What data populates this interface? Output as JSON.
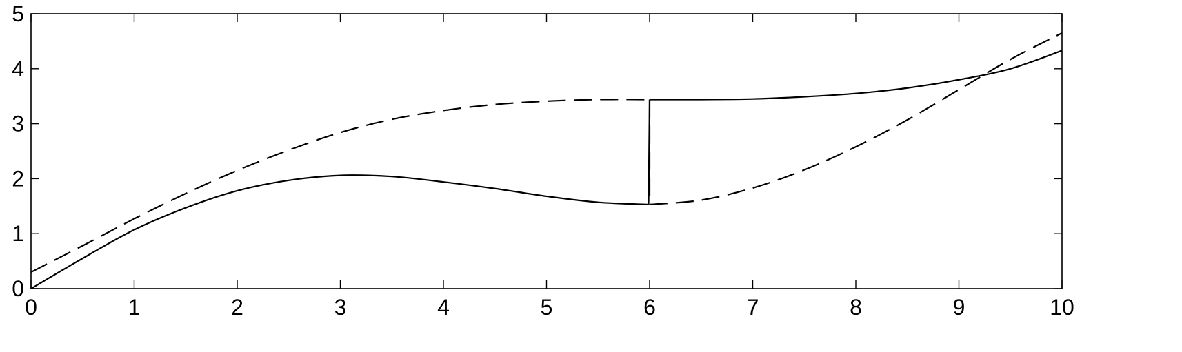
{
  "chart_data": {
    "type": "line",
    "title": "",
    "xlabel": "",
    "ylabel": "",
    "xlim": [
      0,
      10
    ],
    "ylim": [
      0,
      5
    ],
    "x_ticks": [
      "0",
      "1",
      "2",
      "3",
      "4",
      "5",
      "6",
      "7",
      "8",
      "9",
      "10"
    ],
    "y_ticks": [
      "0",
      "1",
      "2",
      "3",
      "4",
      "5"
    ],
    "grid": false,
    "legend": "none",
    "series": [
      {
        "style": "solid",
        "color": "#000000",
        "points": [
          [
            0,
            0.0
          ],
          [
            0.5,
            0.55
          ],
          [
            1,
            1.07
          ],
          [
            1.5,
            1.47
          ],
          [
            2,
            1.78
          ],
          [
            2.5,
            1.97
          ],
          [
            3,
            2.06
          ],
          [
            3.5,
            2.04
          ],
          [
            4,
            1.94
          ],
          [
            4.5,
            1.82
          ],
          [
            5,
            1.68
          ],
          [
            5.5,
            1.57
          ],
          [
            5.99,
            1.53
          ],
          [
            6.0,
            3.44
          ],
          [
            6.5,
            3.44
          ],
          [
            7,
            3.45
          ],
          [
            7.5,
            3.49
          ],
          [
            8,
            3.55
          ],
          [
            8.5,
            3.65
          ],
          [
            9,
            3.8
          ],
          [
            9.5,
            4.0
          ],
          [
            10,
            4.33
          ]
        ]
      },
      {
        "style": "dashed",
        "color": "#000000",
        "points": [
          [
            0,
            0.3
          ],
          [
            0.5,
            0.78
          ],
          [
            1,
            1.27
          ],
          [
            1.5,
            1.73
          ],
          [
            2,
            2.15
          ],
          [
            2.5,
            2.52
          ],
          [
            3,
            2.84
          ],
          [
            3.5,
            3.08
          ],
          [
            4,
            3.24
          ],
          [
            4.5,
            3.35
          ],
          [
            5,
            3.41
          ],
          [
            5.5,
            3.44
          ],
          [
            6,
            3.44
          ],
          [
            6.0,
            1.53
          ],
          [
            6.5,
            1.61
          ],
          [
            7,
            1.83
          ],
          [
            7.5,
            2.16
          ],
          [
            8,
            2.58
          ],
          [
            8.5,
            3.07
          ],
          [
            9,
            3.62
          ],
          [
            9.5,
            4.17
          ],
          [
            10,
            4.65
          ]
        ]
      }
    ]
  }
}
